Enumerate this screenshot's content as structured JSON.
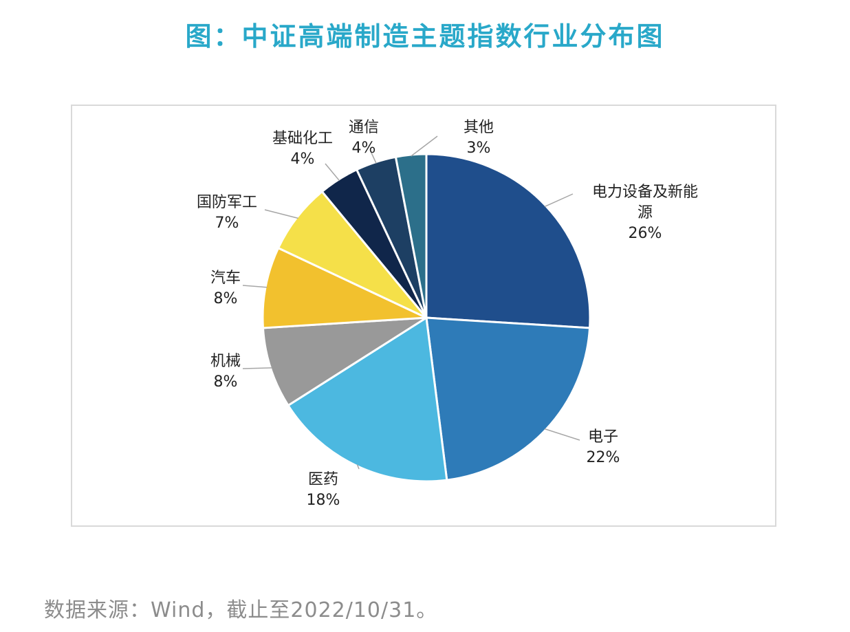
{
  "title": "图：中证高端制造主题指数行业分布图",
  "source_note": "数据来源：Wind，截止至2022/10/31。",
  "chart_data": {
    "type": "pie",
    "title": "图：中证高端制造主题指数行业分布图",
    "slices": [
      {
        "label": "电力设备及新能源",
        "label_lines": [
          "电力设备及新能",
          "源"
        ],
        "value": 26,
        "value_label": "26%",
        "color": "#1f4e8c"
      },
      {
        "label": "电子",
        "label_lines": [
          "电子"
        ],
        "value": 22,
        "value_label": "22%",
        "color": "#2e7bb8"
      },
      {
        "label": "医药",
        "label_lines": [
          "医药"
        ],
        "value": 18,
        "value_label": "18%",
        "color": "#4cb8e0"
      },
      {
        "label": "机械",
        "label_lines": [
          "机械"
        ],
        "value": 8,
        "value_label": "8%",
        "color": "#999999"
      },
      {
        "label": "汽车",
        "label_lines": [
          "汽车"
        ],
        "value": 8,
        "value_label": "8%",
        "color": "#f2c12e"
      },
      {
        "label": "国防军工",
        "label_lines": [
          "国防军工"
        ],
        "value": 7,
        "value_label": "7%",
        "color": "#f5e049"
      },
      {
        "label": "基础化工",
        "label_lines": [
          "基础化工"
        ],
        "value": 4,
        "value_label": "4%",
        "color": "#10264a"
      },
      {
        "label": "通信",
        "label_lines": [
          "通信"
        ],
        "value": 4,
        "value_label": "4%",
        "color": "#1d3f63"
      },
      {
        "label": "其他",
        "label_lines": [
          "其他"
        ],
        "value": 3,
        "value_label": "3%",
        "color": "#2c6f8a"
      }
    ],
    "start_angle": "12 o'clock",
    "direction": "clockwise",
    "legend": "none",
    "data_labels": "outside with leader lines"
  }
}
